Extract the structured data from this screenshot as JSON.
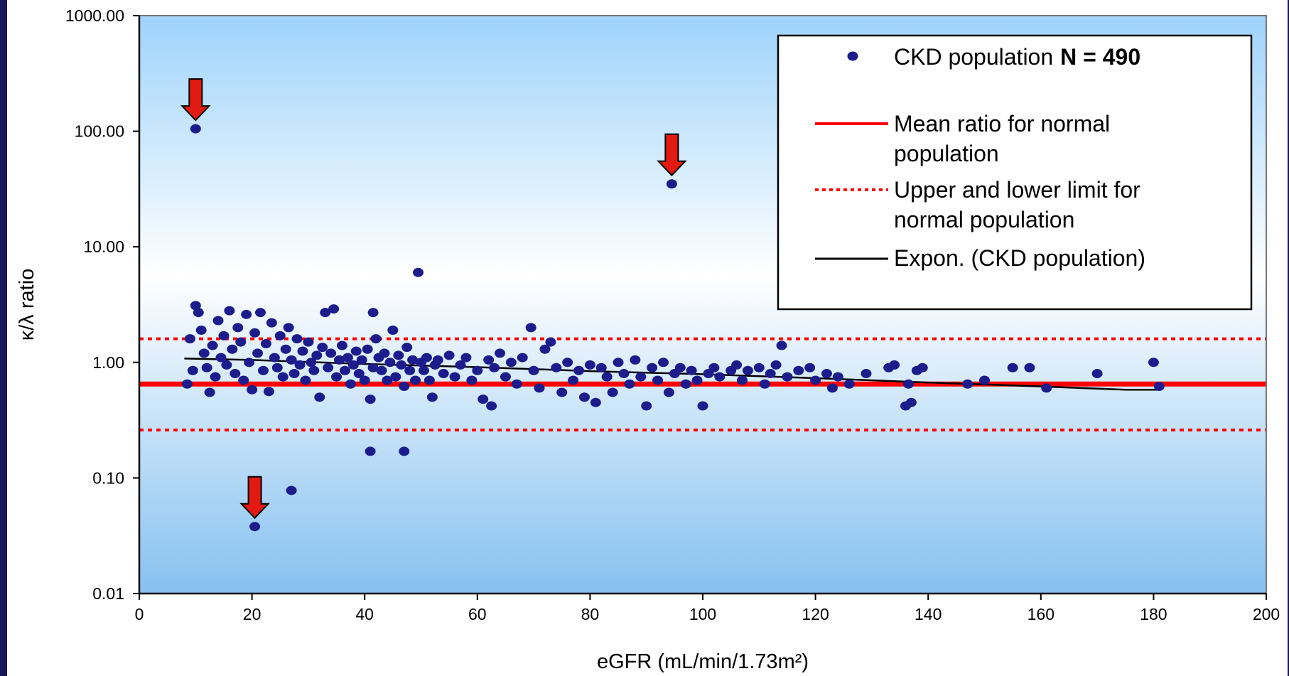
{
  "chart_data": {
    "type": "scatter",
    "xlabel": "eGFR (mL/min/1.73m²)",
    "ylabel": "κ/λ ratio",
    "xlim": [
      0,
      200
    ],
    "ylim": [
      0.01,
      1000
    ],
    "y_scale": "log",
    "x_ticks": [
      "0",
      "20",
      "40",
      "60",
      "80",
      "100",
      "120",
      "140",
      "160",
      "180",
      "200"
    ],
    "y_ticks": [
      "1000.00",
      "100.00",
      "10.00",
      "1.00",
      "0.10",
      "0.01"
    ],
    "grid": false,
    "legend_position": "top-right",
    "background_gradient": [
      "#9ed3fb",
      "#ffffff",
      "#86c1f0"
    ],
    "colors": {
      "points": "#1c1c8c",
      "mean_line": "#ff0000",
      "limit_lines": "#ff0000",
      "trend_line": "#000000",
      "arrows": "#e31a12"
    },
    "series": [
      {
        "name": "CKD population",
        "count_label": "N = 490",
        "kind": "points",
        "points": [
          [
            10,
            105
          ],
          [
            94.5,
            35
          ],
          [
            49.5,
            6.0
          ],
          [
            69.5,
            2.0
          ],
          [
            41.5,
            2.7
          ],
          [
            114,
            1.4
          ],
          [
            20.5,
            0.038
          ],
          [
            27,
            0.078
          ],
          [
            41,
            0.17
          ],
          [
            47,
            0.17
          ],
          [
            8.5,
            0.65
          ],
          [
            9.5,
            0.85
          ],
          [
            9,
            1.6
          ],
          [
            10,
            3.1
          ],
          [
            10.5,
            2.7
          ],
          [
            11,
            1.9
          ],
          [
            11.5,
            1.2
          ],
          [
            12,
            0.9
          ],
          [
            12.5,
            0.55
          ],
          [
            13,
            1.4
          ],
          [
            13.5,
            0.75
          ],
          [
            14,
            2.3
          ],
          [
            14.5,
            1.1
          ],
          [
            15,
            1.7
          ],
          [
            15.5,
            0.95
          ],
          [
            16,
            2.8
          ],
          [
            16.5,
            1.3
          ],
          [
            17,
            0.8
          ],
          [
            17.5,
            2.0
          ],
          [
            18,
            1.5
          ],
          [
            18.5,
            0.7
          ],
          [
            19,
            2.6
          ],
          [
            19.5,
            1.0
          ],
          [
            20,
            0.58
          ],
          [
            20.5,
            1.8
          ],
          [
            21,
            1.2
          ],
          [
            21.5,
            2.7
          ],
          [
            22,
            0.85
          ],
          [
            22.5,
            1.45
          ],
          [
            23,
            0.56
          ],
          [
            23.5,
            2.2
          ],
          [
            24,
            1.1
          ],
          [
            24.5,
            0.9
          ],
          [
            25,
            1.7
          ],
          [
            25.5,
            0.75
          ],
          [
            26,
            1.3
          ],
          [
            26.5,
            2.0
          ],
          [
            27,
            1.05
          ],
          [
            27.5,
            0.8
          ],
          [
            28,
            1.6
          ],
          [
            28.5,
            0.95
          ],
          [
            29,
            1.25
          ],
          [
            29.5,
            0.7
          ],
          [
            30,
            1.5
          ],
          [
            30.5,
            1.0
          ],
          [
            31,
            0.85
          ],
          [
            31.5,
            1.15
          ],
          [
            32,
            0.5
          ],
          [
            32.5,
            1.35
          ],
          [
            33,
            2.7
          ],
          [
            33.5,
            0.9
          ],
          [
            34,
            1.2
          ],
          [
            34.5,
            2.9
          ],
          [
            35,
            0.75
          ],
          [
            35.5,
            1.05
          ],
          [
            36,
            1.4
          ],
          [
            36.5,
            0.85
          ],
          [
            37,
            1.1
          ],
          [
            37.5,
            0.65
          ],
          [
            38,
            0.95
          ],
          [
            38.5,
            1.25
          ],
          [
            39,
            0.8
          ],
          [
            39.5,
            1.05
          ],
          [
            40,
            0.7
          ],
          [
            40.5,
            1.3
          ],
          [
            41,
            0.48
          ],
          [
            41.5,
            0.9
          ],
          [
            42,
            1.6
          ],
          [
            42.5,
            1.1
          ],
          [
            43,
            0.85
          ],
          [
            43.5,
            1.2
          ],
          [
            44,
            0.7
          ],
          [
            44.5,
            1.0
          ],
          [
            45,
            1.9
          ],
          [
            45.5,
            0.75
          ],
          [
            46,
            1.15
          ],
          [
            46.5,
            0.95
          ],
          [
            47,
            0.62
          ],
          [
            47.5,
            1.35
          ],
          [
            48,
            0.85
          ],
          [
            48.5,
            1.05
          ],
          [
            49,
            0.7
          ],
          [
            50,
            1.0
          ],
          [
            50.5,
            0.85
          ],
          [
            51,
            1.1
          ],
          [
            51.5,
            0.7
          ],
          [
            52,
            0.5
          ],
          [
            52.5,
            0.95
          ],
          [
            53,
            1.05
          ],
          [
            54,
            0.8
          ],
          [
            55,
            1.15
          ],
          [
            56,
            0.75
          ],
          [
            57,
            0.95
          ],
          [
            58,
            1.1
          ],
          [
            59,
            0.7
          ],
          [
            60,
            0.85
          ],
          [
            61,
            0.48
          ],
          [
            62,
            1.05
          ],
          [
            62.5,
            0.42
          ],
          [
            63,
            0.9
          ],
          [
            64,
            1.2
          ],
          [
            65,
            0.75
          ],
          [
            66,
            1.0
          ],
          [
            67,
            0.65
          ],
          [
            68,
            1.1
          ],
          [
            70,
            0.85
          ],
          [
            71,
            0.6
          ],
          [
            72,
            1.3
          ],
          [
            73,
            1.5
          ],
          [
            74,
            0.9
          ],
          [
            75,
            0.55
          ],
          [
            76,
            1.0
          ],
          [
            77,
            0.7
          ],
          [
            78,
            0.85
          ],
          [
            79,
            0.5
          ],
          [
            80,
            0.95
          ],
          [
            81,
            0.45
          ],
          [
            82,
            0.9
          ],
          [
            83,
            0.75
          ],
          [
            84,
            0.55
          ],
          [
            85,
            1.0
          ],
          [
            86,
            0.8
          ],
          [
            87,
            0.65
          ],
          [
            88,
            1.05
          ],
          [
            89,
            0.75
          ],
          [
            90,
            0.42
          ],
          [
            91,
            0.9
          ],
          [
            92,
            0.7
          ],
          [
            93,
            1.0
          ],
          [
            94,
            0.55
          ],
          [
            95,
            0.8
          ],
          [
            96,
            0.9
          ],
          [
            97,
            0.65
          ],
          [
            98,
            0.85
          ],
          [
            99,
            0.7
          ],
          [
            100,
            0.42
          ],
          [
            101,
            0.8
          ],
          [
            102,
            0.9
          ],
          [
            103,
            0.75
          ],
          [
            105,
            0.85
          ],
          [
            106,
            0.95
          ],
          [
            107,
            0.7
          ],
          [
            108,
            0.85
          ],
          [
            110,
            0.9
          ],
          [
            111,
            0.65
          ],
          [
            112,
            0.8
          ],
          [
            113,
            0.95
          ],
          [
            115,
            0.75
          ],
          [
            117,
            0.85
          ],
          [
            119,
            0.9
          ],
          [
            120,
            0.7
          ],
          [
            122,
            0.8
          ],
          [
            123,
            0.6
          ],
          [
            124,
            0.75
          ],
          [
            126,
            0.65
          ],
          [
            129,
            0.8
          ],
          [
            133,
            0.9
          ],
          [
            134,
            0.95
          ],
          [
            136,
            0.42
          ],
          [
            136.5,
            0.65
          ],
          [
            137,
            0.45
          ],
          [
            138,
            0.85
          ],
          [
            139,
            0.9
          ],
          [
            147,
            0.65
          ],
          [
            150,
            0.7
          ],
          [
            155,
            0.9
          ],
          [
            158,
            0.9
          ],
          [
            161,
            0.6
          ],
          [
            170,
            0.8
          ],
          [
            180,
            1.0
          ],
          [
            181,
            0.62
          ]
        ]
      },
      {
        "name": "Mean ratio for normal population",
        "kind": "hline",
        "y": 0.65
      },
      {
        "name": "Upper and lower limit for normal population",
        "kind": "hlines-dotted",
        "y": [
          1.6,
          0.26
        ]
      },
      {
        "name": "Expon. (CKD population)",
        "kind": "trend",
        "points": [
          [
            8,
            1.08
          ],
          [
            20,
            1.05
          ],
          [
            40,
            0.97
          ],
          [
            60,
            0.91
          ],
          [
            80,
            0.84
          ],
          [
            100,
            0.79
          ],
          [
            120,
            0.73
          ],
          [
            140,
            0.67
          ],
          [
            160,
            0.62
          ],
          [
            175,
            0.58
          ],
          [
            181,
            0.58
          ]
        ]
      }
    ],
    "annotations": [
      {
        "kind": "arrow-down",
        "x": 10,
        "y": 105
      },
      {
        "kind": "arrow-down",
        "x": 94.5,
        "y": 35
      },
      {
        "kind": "arrow-down",
        "x": 20.5,
        "y": 0.038
      }
    ],
    "legend": {
      "items": [
        {
          "symbol": "point",
          "label_lines": [
            "CKD population"
          ],
          "extra": "N = 490"
        },
        {
          "symbol": "solid-red",
          "label_lines": [
            "Mean ratio for normal",
            "population"
          ]
        },
        {
          "symbol": "dotted-red",
          "label_lines": [
            "Upper and lower limit for",
            "normal population"
          ]
        },
        {
          "symbol": "solid-black",
          "label_lines": [
            "Expon. (CKD population)"
          ]
        }
      ]
    }
  }
}
